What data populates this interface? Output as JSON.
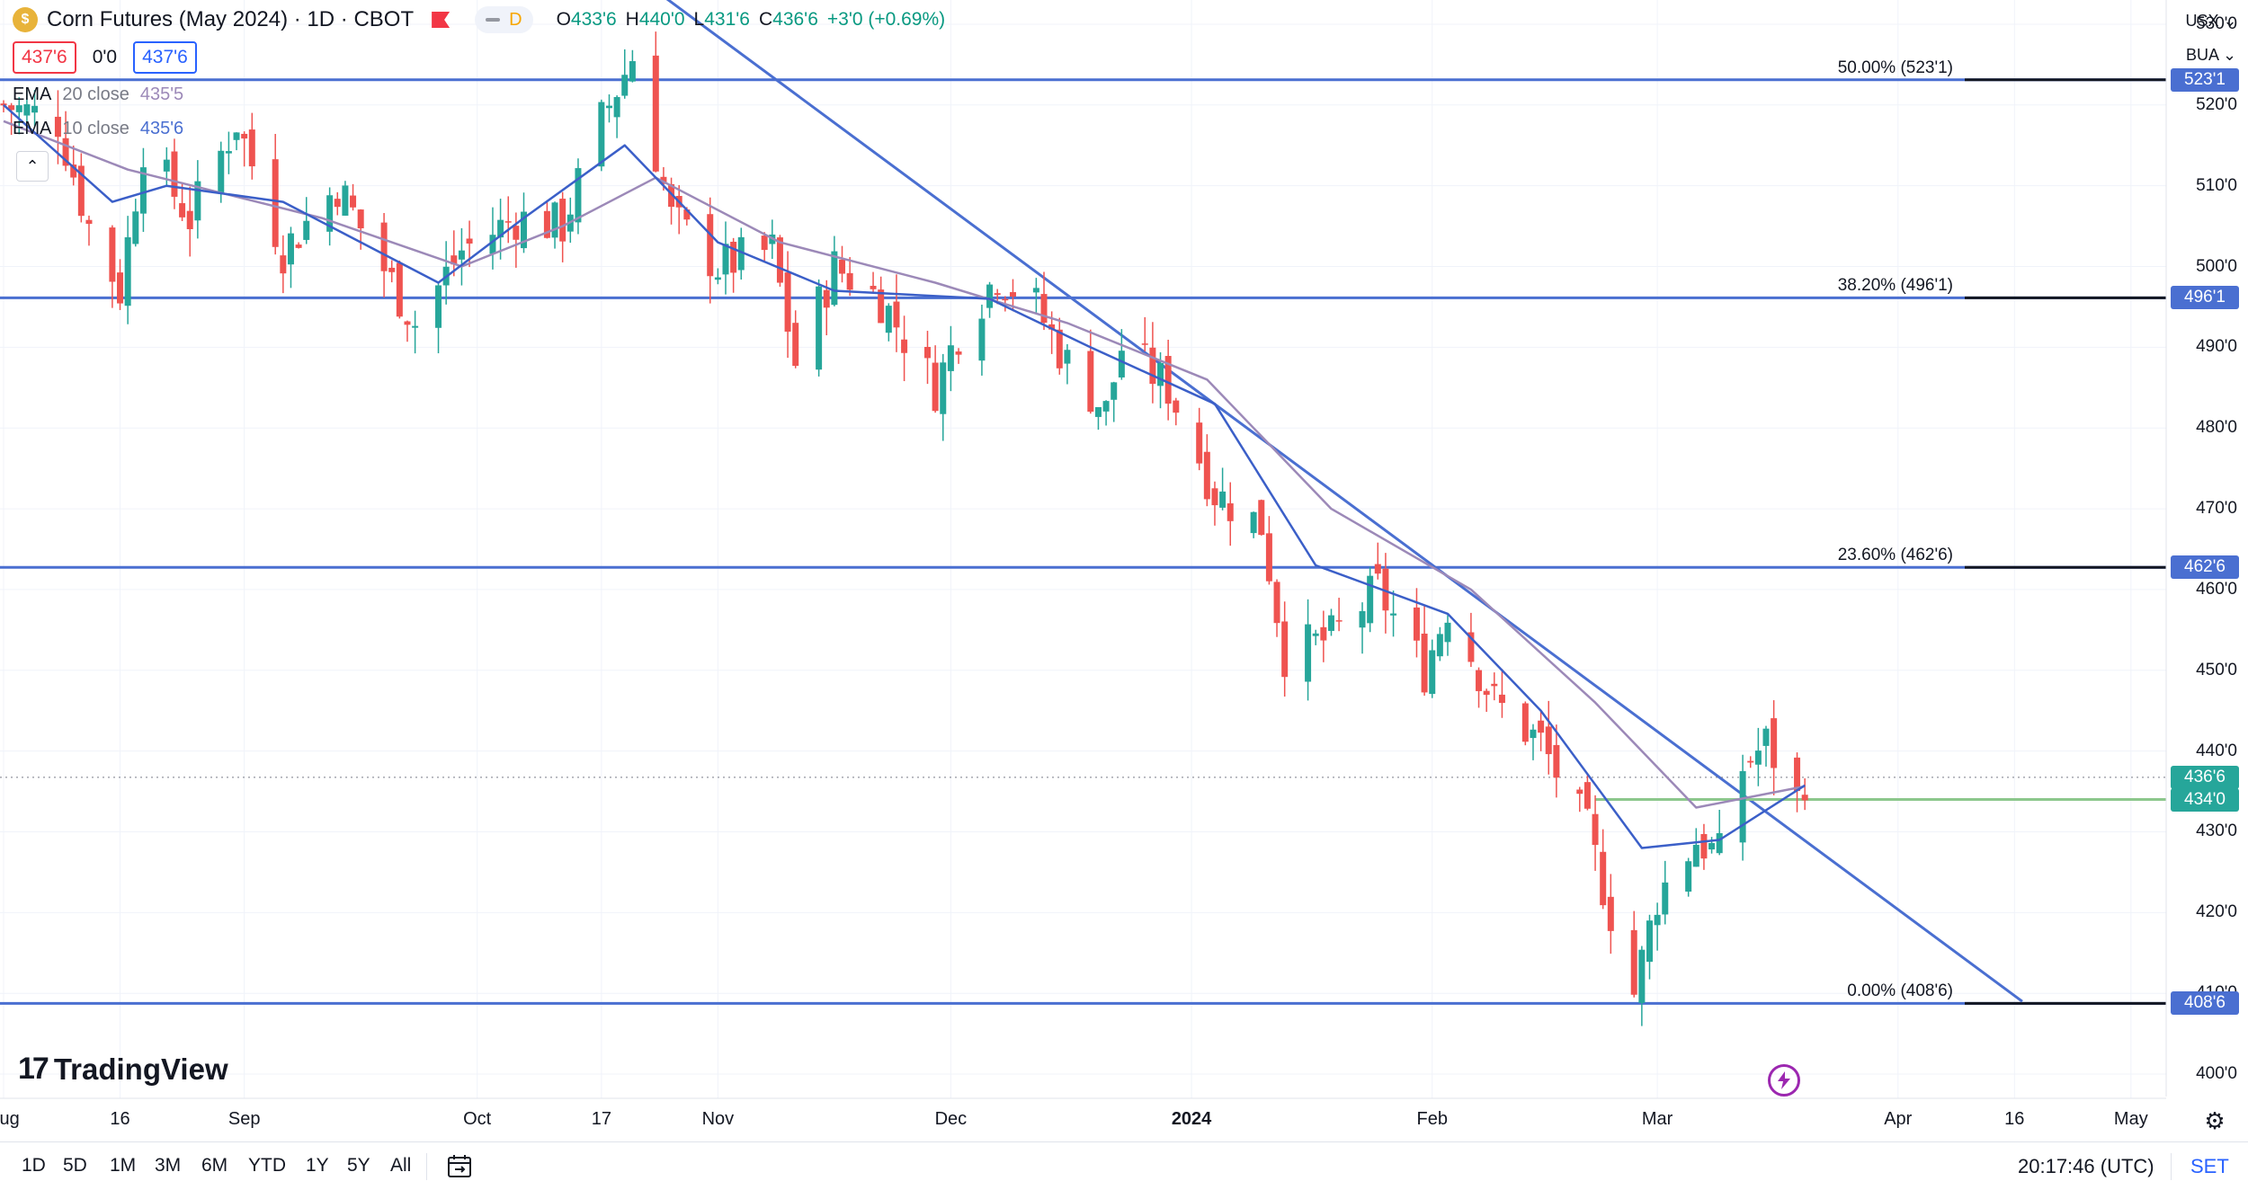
{
  "header": {
    "symbol_icon": "dollar-coin-icon",
    "symbol_glyph": "$",
    "title": "Corn Futures (May 2024) · 1D · CBOT",
    "interval_flag": "D",
    "ohlc": {
      "o_label": "O",
      "o_value": "433'6",
      "h_label": "H",
      "h_value": "440'0",
      "l_label": "L",
      "l_value": "431'6",
      "c_label": "C",
      "c_value": "436'6",
      "change": "+3'0 (+0.69%)"
    },
    "bid": "437'6",
    "spread": "0'0",
    "ask": "437'6",
    "ema20": {
      "name": "EMA",
      "params": "20 close",
      "value": "435'5"
    },
    "ema10": {
      "name": "EMA",
      "params": "10 close",
      "value": "435'6"
    },
    "collapse_glyph": "⌃"
  },
  "corner": {
    "unit": "USX ⌄",
    "type": "BUA ⌄"
  },
  "price_axis": [
    "530'0",
    "520'0",
    "510'0",
    "500'0",
    "490'0",
    "480'0",
    "470'0",
    "460'0",
    "450'0",
    "440'0",
    "430'0",
    "420'0",
    "410'0",
    "400'0"
  ],
  "price_axis_values": [
    530,
    520,
    510,
    500,
    490,
    480,
    470,
    460,
    450,
    440,
    430,
    420,
    410,
    400
  ],
  "price_tags": [
    {
      "label": "523'1",
      "value": 523.125,
      "color": "#4a6fd1"
    },
    {
      "label": "496'1",
      "value": 496.125,
      "color": "#4a6fd1"
    },
    {
      "label": "462'6",
      "value": 462.75,
      "color": "#4a6fd1"
    },
    {
      "label": "436'6",
      "value": 436.75,
      "color": "#26a69a"
    },
    {
      "label": "434'0",
      "value": 434.0,
      "color": "#26a69a"
    },
    {
      "label": "408'6",
      "value": 408.75,
      "color": "#4a6fd1"
    }
  ],
  "time_axis": [
    {
      "label": "Aug",
      "day": 0,
      "bold": false
    },
    {
      "label": "16",
      "day": 15,
      "bold": false
    },
    {
      "label": "Sep",
      "day": 31,
      "bold": false
    },
    {
      "label": "Oct",
      "day": 61,
      "bold": false
    },
    {
      "label": "17",
      "day": 77,
      "bold": false
    },
    {
      "label": "Nov",
      "day": 92,
      "bold": false
    },
    {
      "label": "Dec",
      "day": 122,
      "bold": false
    },
    {
      "label": "2024",
      "day": 153,
      "bold": true
    },
    {
      "label": "Feb",
      "day": 184,
      "bold": false
    },
    {
      "label": "Mar",
      "day": 213,
      "bold": false
    },
    {
      "label": "Apr",
      "day": 244,
      "bold": false
    },
    {
      "label": "16",
      "day": 259,
      "bold": false
    },
    {
      "label": "May",
      "day": 274,
      "bold": false
    }
  ],
  "fib_labels": [
    {
      "text": "50.00% (523'1)",
      "value": 523.125
    },
    {
      "text": "38.20% (496'1)",
      "value": 496.125
    },
    {
      "text": "23.60% (462'6)",
      "value": 462.75
    },
    {
      "text": "0.00% (408'6)",
      "value": 408.75
    }
  ],
  "logo": {
    "mark": "17",
    "word": "TradingView"
  },
  "icons": {
    "flash": "flash-icon",
    "settings": "gear-icon",
    "date_range": "calendar-range-icon"
  },
  "bottom_bar": {
    "ranges": [
      "1D",
      "5D",
      "1M",
      "3M",
      "6M",
      "YTD",
      "1Y",
      "5Y",
      "All"
    ],
    "time": "20:17:46 (UTC)",
    "set": "SET"
  },
  "chart_data": {
    "type": "candlestick",
    "title": "Corn Futures (May 2024) · 1D · CBOT",
    "xlabel": "",
    "ylabel": "",
    "date_range": [
      "2023-07-31",
      "2024-05-05"
    ],
    "ylim": [
      397,
      533
    ],
    "grid": true,
    "legend": "top-left",
    "colors": {
      "up": "#26a69a",
      "down": "#ef5350",
      "ema10": "#3b5fc8",
      "ema20": "#9c89b8",
      "levels": "#4a6fd1",
      "trendline": "#4a6fd1",
      "support": "#8cc78c"
    },
    "anchors": [
      {
        "date": "2023-07-31",
        "close": 520
      },
      {
        "date": "2023-08-07",
        "close": 518
      },
      {
        "date": "2023-08-11",
        "close": 505
      },
      {
        "date": "2023-08-15",
        "close": 497
      },
      {
        "date": "2023-08-18",
        "close": 515
      },
      {
        "date": "2023-08-24",
        "close": 506
      },
      {
        "date": "2023-08-30",
        "close": 518
      },
      {
        "date": "2023-09-05",
        "close": 502
      },
      {
        "date": "2023-09-12",
        "close": 510
      },
      {
        "date": "2023-09-19",
        "close": 498
      },
      {
        "date": "2023-09-22",
        "close": 493
      },
      {
        "date": "2023-09-28",
        "close": 502
      },
      {
        "date": "2023-10-05",
        "close": 506
      },
      {
        "date": "2023-10-11",
        "close": 505
      },
      {
        "date": "2023-10-16",
        "close": 518
      },
      {
        "date": "2023-10-20",
        "close": 526
      },
      {
        "date": "2023-10-25",
        "close": 506
      },
      {
        "date": "2023-10-31",
        "close": 500
      },
      {
        "date": "2023-11-07",
        "close": 502
      },
      {
        "date": "2023-11-10",
        "close": 488
      },
      {
        "date": "2023-11-15",
        "close": 500
      },
      {
        "date": "2023-11-21",
        "close": 496
      },
      {
        "date": "2023-11-28",
        "close": 485
      },
      {
        "date": "2023-12-01",
        "close": 492
      },
      {
        "date": "2023-12-06",
        "close": 499
      },
      {
        "date": "2023-12-11",
        "close": 495
      },
      {
        "date": "2023-12-15",
        "close": 488
      },
      {
        "date": "2023-12-20",
        "close": 482
      },
      {
        "date": "2023-12-22",
        "close": 490
      },
      {
        "date": "2023-12-28",
        "close": 485
      },
      {
        "date": "2024-01-03",
        "close": 472
      },
      {
        "date": "2024-01-09",
        "close": 468
      },
      {
        "date": "2024-01-12",
        "close": 452
      },
      {
        "date": "2024-01-18",
        "close": 454
      },
      {
        "date": "2024-01-24",
        "close": 460
      },
      {
        "date": "2024-01-30",
        "close": 450
      },
      {
        "date": "2024-02-02",
        "close": 458
      },
      {
        "date": "2024-02-08",
        "close": 446
      },
      {
        "date": "2024-02-14",
        "close": 441
      },
      {
        "date": "2024-02-20",
        "close": 430
      },
      {
        "date": "2024-02-26",
        "close": 410
      },
      {
        "date": "2024-02-29",
        "close": 422
      },
      {
        "date": "2024-03-05",
        "close": 429
      },
      {
        "date": "2024-03-08",
        "close": 427
      },
      {
        "date": "2024-03-11",
        "close": 438
      },
      {
        "date": "2024-03-14",
        "close": 441
      },
      {
        "date": "2024-03-18",
        "close": 434
      },
      {
        "date": "2024-03-19",
        "close": 436.75
      }
    ],
    "ema10_points": [
      {
        "date": "2023-07-31",
        "value": 520
      },
      {
        "date": "2023-08-14",
        "value": 508
      },
      {
        "date": "2023-08-21",
        "value": 510
      },
      {
        "date": "2023-09-05",
        "value": 508
      },
      {
        "date": "2023-09-25",
        "value": 498
      },
      {
        "date": "2023-10-06",
        "value": 506
      },
      {
        "date": "2023-10-19",
        "value": 515
      },
      {
        "date": "2023-10-31",
        "value": 503
      },
      {
        "date": "2023-11-15",
        "value": 497
      },
      {
        "date": "2023-12-05",
        "value": 496
      },
      {
        "date": "2023-12-18",
        "value": 490
      },
      {
        "date": "2024-01-03",
        "value": 483
      },
      {
        "date": "2024-01-16",
        "value": 463
      },
      {
        "date": "2024-02-02",
        "value": 457
      },
      {
        "date": "2024-02-14",
        "value": 445
      },
      {
        "date": "2024-02-27",
        "value": 428
      },
      {
        "date": "2024-03-08",
        "value": 429
      },
      {
        "date": "2024-03-19",
        "value": 435.75
      }
    ],
    "ema20_points": [
      {
        "date": "2023-07-31",
        "value": 518
      },
      {
        "date": "2023-08-16",
        "value": 512
      },
      {
        "date": "2023-09-10",
        "value": 506
      },
      {
        "date": "2023-09-28",
        "value": 500
      },
      {
        "date": "2023-10-11",
        "value": 505
      },
      {
        "date": "2023-10-23",
        "value": 511
      },
      {
        "date": "2023-11-08",
        "value": 503
      },
      {
        "date": "2023-11-28",
        "value": 498
      },
      {
        "date": "2023-12-15",
        "value": 493
      },
      {
        "date": "2024-01-02",
        "value": 486
      },
      {
        "date": "2024-01-18",
        "value": 470
      },
      {
        "date": "2024-02-05",
        "value": 460
      },
      {
        "date": "2024-02-21",
        "value": 446
      },
      {
        "date": "2024-03-05",
        "value": 433
      },
      {
        "date": "2024-03-19",
        "value": 435.625
      }
    ],
    "fib_levels": [
      {
        "ratio": "50.00%",
        "price": 523.125
      },
      {
        "ratio": "38.20%",
        "price": 496.125
      },
      {
        "ratio": "23.60%",
        "price": 462.75
      },
      {
        "ratio": "0.00%",
        "price": 408.75
      }
    ],
    "trendline": {
      "from": {
        "date": "2023-10-19",
        "price": 537
      },
      "to": {
        "date": "2024-04-16",
        "price": 409
      }
    },
    "support_line": {
      "from": {
        "date": "2024-02-21",
        "price": 434
      },
      "price": 434
    },
    "current_price": 436.75
  }
}
